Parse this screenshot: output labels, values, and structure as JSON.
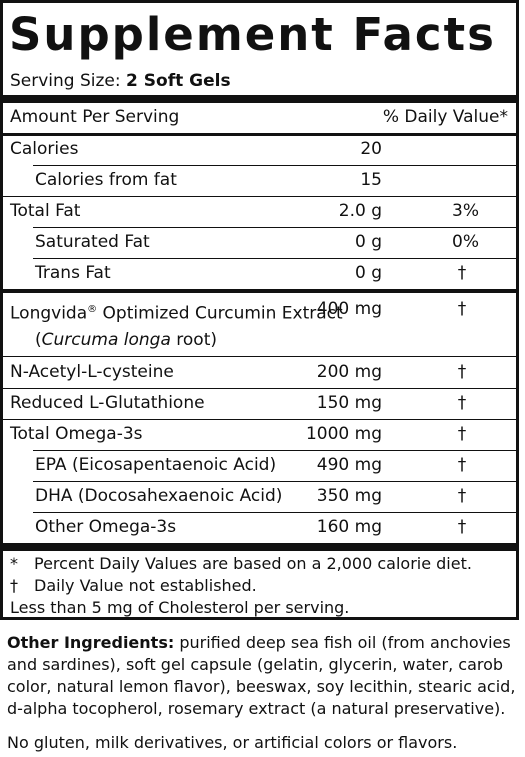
{
  "title": "Supplement Facts",
  "serving": {
    "label": "Serving Size:",
    "value": "2 Soft Gels"
  },
  "header": {
    "amount": "Amount Per Serving",
    "dv": "% Daily Value*"
  },
  "rows": [
    {
      "label": "Calories",
      "amount": "20",
      "dv": ""
    },
    {
      "label": "Calories from fat",
      "amount": "15",
      "dv": ""
    },
    {
      "label": "Total Fat",
      "amount": "2.0 g",
      "dv": "3%"
    },
    {
      "label": "Saturated Fat",
      "amount": "0 g",
      "dv": "0%"
    },
    {
      "label": "Trans Fat",
      "amount": "0 g",
      "dv": "†"
    },
    {
      "label": "Longvida",
      "label_mark": "®",
      "label_rest": " Optimized Curcumin Extract",
      "sublabel_open": "(",
      "sublabel_italic": "Curcuma longa",
      "sublabel_rest": " root)",
      "amount": "400 mg",
      "dv": "†"
    },
    {
      "label": "N-Acetyl-L-cysteine",
      "amount": "200 mg",
      "dv": "†"
    },
    {
      "label": "Reduced L-Glutathione",
      "amount": "150 mg",
      "dv": "†"
    },
    {
      "label": "Total Omega-3s",
      "amount": "1000 mg",
      "dv": "†"
    },
    {
      "label": "EPA (Eicosapentaenoic Acid)",
      "amount": "490 mg",
      "dv": "†"
    },
    {
      "label": "DHA (Docosahexaenoic Acid)",
      "amount": "350 mg",
      "dv": "†"
    },
    {
      "label": "Other Omega-3s",
      "amount": "160 mg",
      "dv": "†"
    }
  ],
  "footnotes": {
    "star_sym": "*",
    "star_text": "Percent Daily Values are based on a 2,000 calorie diet.",
    "dagger_sym": "†",
    "dagger_text": "Daily Value not established.",
    "cholesterol": "Less than 5 mg of Cholesterol per serving."
  },
  "other_ingredients": {
    "label": "Other Ingredients:",
    "text": " purified deep sea fish oil (from anchovies and sardines), soft gel capsule (gelatin, glycerin, water, carob color, natural lemon flavor), beeswax, soy lecithin, stearic acid, d-alpha tocopherol, rosemary extract (a natural preservative)."
  },
  "no_gluten": "No gluten, milk derivatives, or artificial colors or flavors."
}
